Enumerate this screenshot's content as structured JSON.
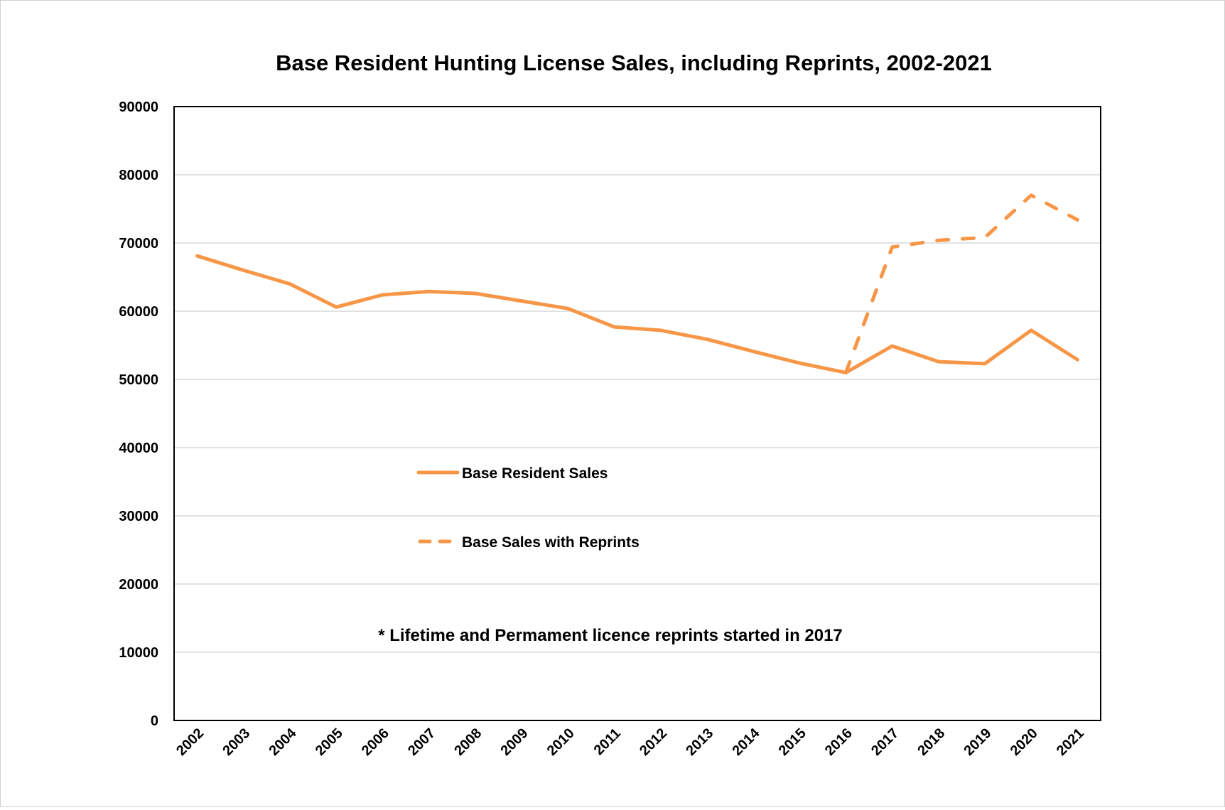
{
  "chart_data": {
    "type": "line",
    "title": "Base Resident Hunting License Sales, including Reprints, 2002-2021",
    "xlabel": "",
    "ylabel": "",
    "categories": [
      "2002",
      "2003",
      "2004",
      "2005",
      "2006",
      "2007",
      "2008",
      "2009",
      "2010",
      "2011",
      "2012",
      "2013",
      "2014",
      "2015",
      "2016",
      "2017",
      "2018",
      "2019",
      "2020",
      "2021"
    ],
    "ylim": [
      0,
      90000
    ],
    "yticks": [
      "0",
      "10000",
      "20000",
      "30000",
      "40000",
      "50000",
      "60000",
      "70000",
      "80000",
      "90000"
    ],
    "grid": true,
    "legend_position": "center-left inside plot",
    "series": [
      {
        "name": "Base Resident Sales",
        "style": "solid",
        "color": "#F79646",
        "values": [
          68100,
          66000,
          64000,
          60600,
          62400,
          62900,
          62600,
          61500,
          60400,
          57700,
          57200,
          55900,
          54100,
          52400,
          51000,
          54900,
          52600,
          52300,
          57200,
          52900
        ]
      },
      {
        "name": "Base Sales with Reprints",
        "style": "dashed",
        "color": "#F79646",
        "values": [
          null,
          null,
          null,
          null,
          null,
          null,
          null,
          null,
          null,
          null,
          null,
          null,
          null,
          null,
          51000,
          69400,
          70400,
          70800,
          77000,
          73400
        ]
      }
    ],
    "annotation": "* Lifetime and Permament licence reprints started in 2017"
  }
}
